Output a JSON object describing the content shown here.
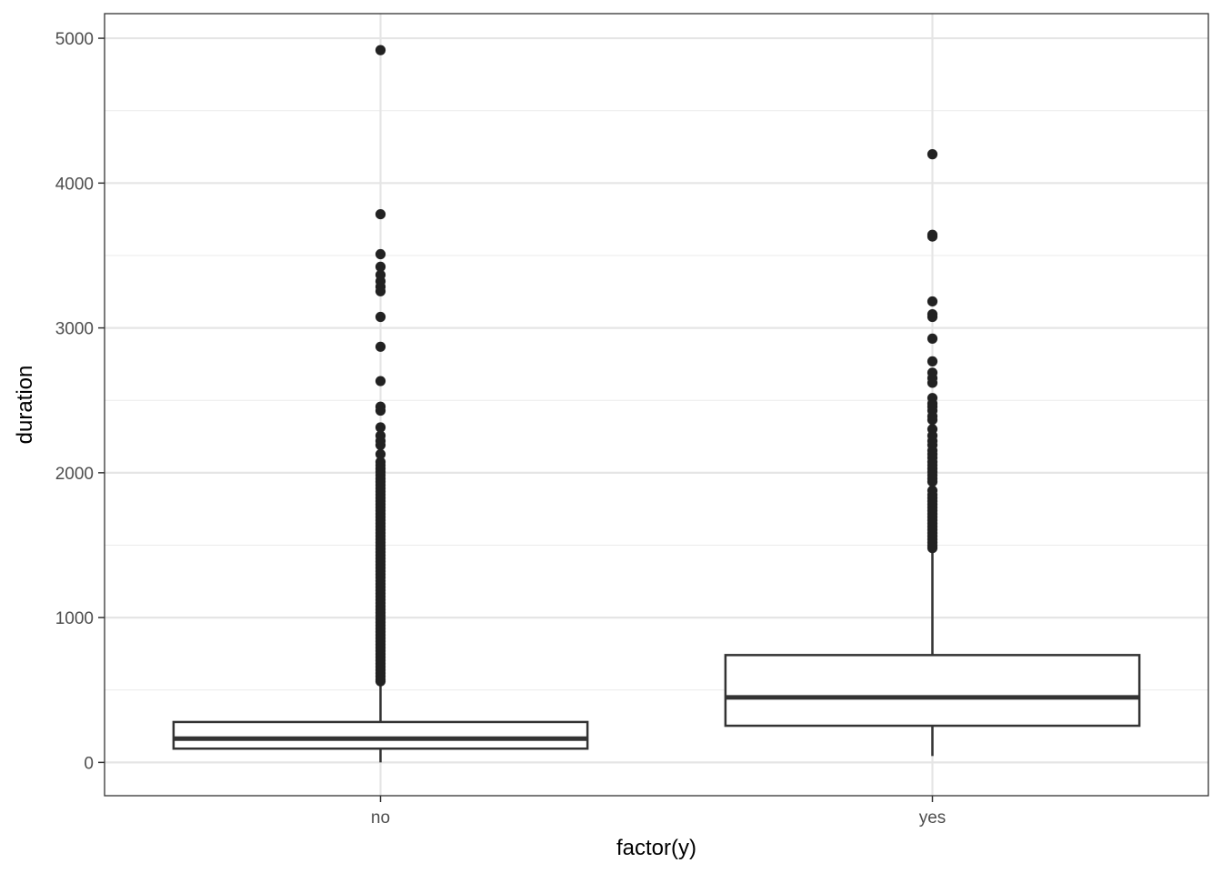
{
  "chart_data": {
    "type": "boxplot",
    "xlabel": "factor(y)",
    "ylabel": "duration",
    "categories": [
      "no",
      "yes"
    ],
    "ylim": [
      -230,
      5170
    ],
    "y_ticks": [
      0,
      1000,
      2000,
      3000,
      4000,
      5000
    ],
    "y_tick_labels": [
      "0",
      "1000",
      "2000",
      "3000",
      "4000",
      "5000"
    ],
    "grid": true,
    "legend": "none",
    "boxes": [
      {
        "category": "no",
        "whisker_low": 0,
        "q1": 95,
        "median": 164,
        "q3": 279,
        "whisker_high": 554,
        "outliers": [
          4918,
          3785,
          3509,
          3422,
          3366,
          3322,
          3284,
          3253,
          3076,
          2870,
          2633,
          2456,
          2429,
          2313,
          2256,
          2219,
          2191,
          2128,
          2075,
          2053,
          2029,
          2006,
          1983,
          1960,
          1938,
          1915,
          1892,
          1870,
          1848,
          1826,
          1804,
          1782,
          1760,
          1738,
          1716,
          1694,
          1672,
          1650,
          1628,
          1606,
          1584,
          1562,
          1540,
          1518,
          1496,
          1474,
          1452,
          1430,
          1408,
          1386,
          1364,
          1342,
          1320,
          1298,
          1276,
          1254,
          1232,
          1210,
          1188,
          1166,
          1144,
          1122,
          1100,
          1078,
          1056,
          1034,
          1012,
          990,
          968,
          946,
          924,
          902,
          880,
          858,
          836,
          814,
          792,
          770,
          748,
          726,
          704,
          682,
          660,
          638,
          616,
          594,
          572,
          560
        ]
      },
      {
        "category": "yes",
        "whisker_low": 44,
        "q1": 253,
        "median": 449,
        "q3": 741,
        "whisker_high": 1470,
        "outliers": [
          4199,
          3643,
          3631,
          3183,
          3094,
          3076,
          2926,
          2769,
          2691,
          2653,
          2621,
          2516,
          2478,
          2456,
          2429,
          2390,
          2365,
          2301,
          2256,
          2219,
          2191,
          2153,
          2128,
          2103,
          2075,
          2053,
          2029,
          2006,
          1983,
          1960,
          1938,
          1877,
          1848,
          1826,
          1804,
          1782,
          1760,
          1738,
          1716,
          1694,
          1672,
          1650,
          1628,
          1606,
          1584,
          1562,
          1540,
          1518,
          1496,
          1480
        ]
      }
    ]
  }
}
